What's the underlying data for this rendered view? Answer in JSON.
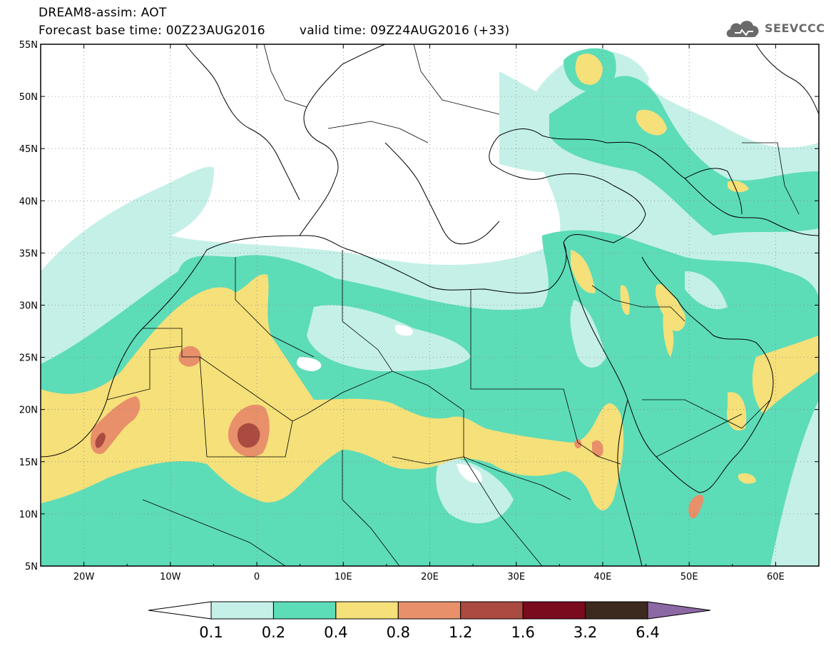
{
  "header": {
    "model_title": "DREAM8-assim: AOT",
    "base_time": "Forecast base time: 00Z23AUG2016",
    "valid_time": "valid time: 09Z24AUG2016 (+33)"
  },
  "logo": {
    "text": "SEEVCCC",
    "icon": "cloud-icon",
    "color": "#6a6a6a"
  },
  "map": {
    "lon_range": [
      -25,
      65
    ],
    "lat_range": [
      5,
      55
    ],
    "lon_ticks": [
      "20W",
      "10W",
      "0",
      "10E",
      "20E",
      "30E",
      "40E",
      "50E",
      "60E"
    ],
    "lat_ticks": [
      "55N",
      "50N",
      "45N",
      "40N",
      "35N",
      "30N",
      "25N",
      "20N",
      "15N",
      "10N",
      "5N"
    ],
    "grid": "dotted"
  },
  "colorbar": {
    "labels": [
      "0.1",
      "0.2",
      "0.4",
      "0.8",
      "1.2",
      "1.6",
      "3.2",
      "6.4"
    ],
    "colors": [
      "#ffffff",
      "#c4f0e8",
      "#5ddcb8",
      "#f5e07a",
      "#e8906a",
      "#ab4a40",
      "#7a0a1e",
      "#3c2a1e",
      "#8c68a4"
    ]
  }
}
